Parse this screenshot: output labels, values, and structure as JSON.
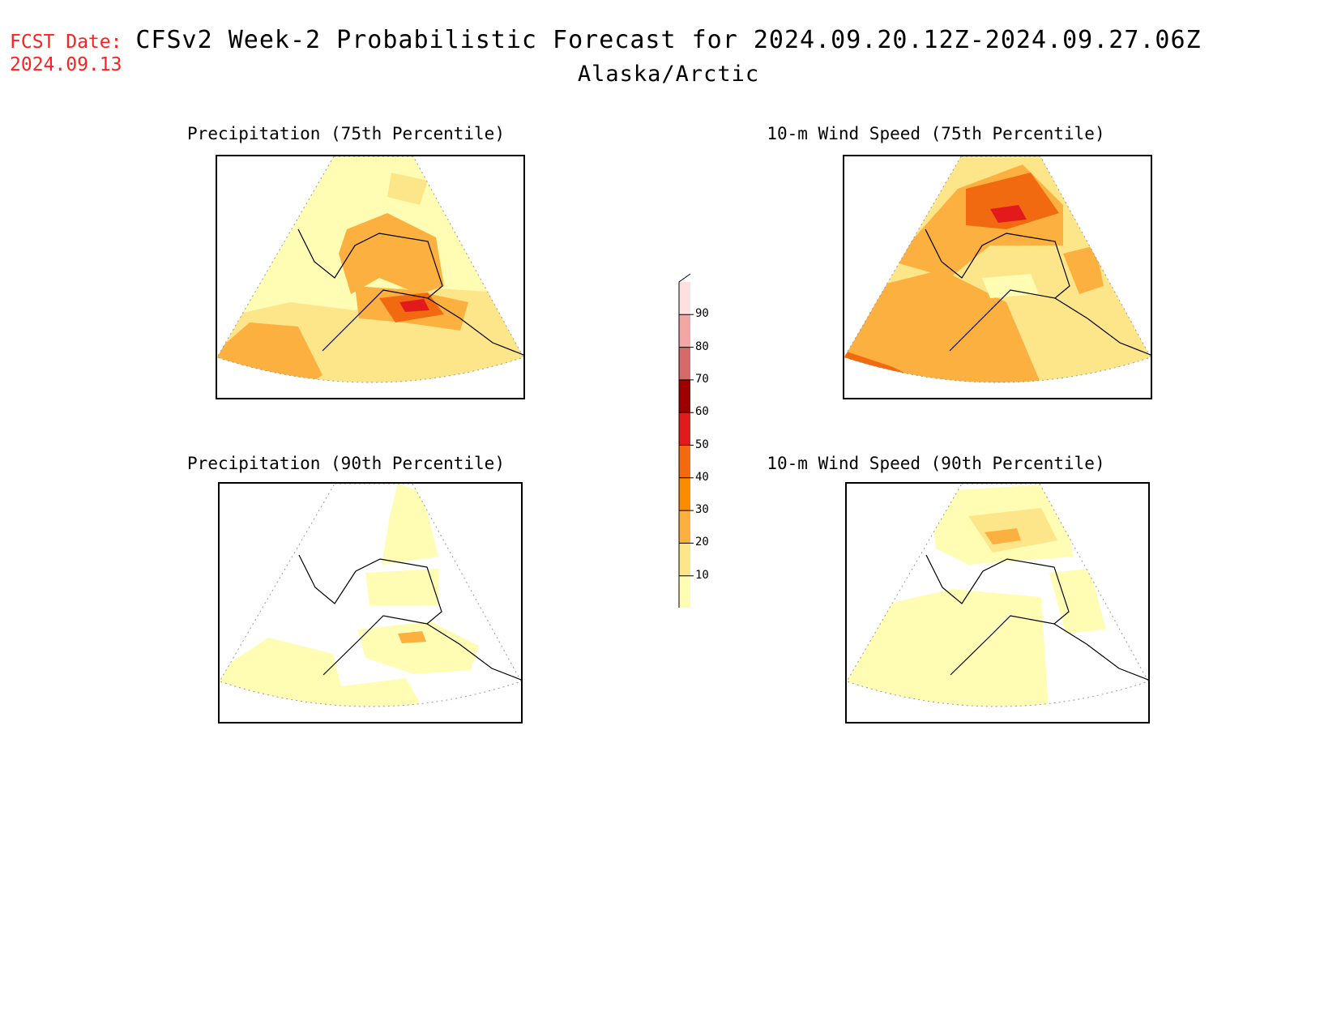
{
  "fcst_date_label": "FCST Date:",
  "fcst_date": "2024.09.13",
  "title": "CFSv2 Week-2 Probabilistic Forecast for 2024.09.20.12Z-2024.09.27.06Z",
  "subtitle": "Alaska/Arctic",
  "panels": [
    {
      "title": "Precipitation (75th Percentile)"
    },
    {
      "title": "10-m Wind Speed (75th Percentile)"
    },
    {
      "title": "Precipitation (90th Percentile)"
    },
    {
      "title": "10-m Wind Speed (90th Percentile)"
    }
  ],
  "colorbar": {
    "levels": [
      "10",
      "20",
      "30",
      "40",
      "50",
      "60",
      "70",
      "80",
      "90"
    ],
    "colors": [
      "#fffcb4",
      "#fde68a",
      "#fbb040",
      "#fb8c00",
      "#f26a10",
      "#e31a1c",
      "#9e0000",
      "#d66a6a",
      "#f2a6a6",
      "#ffe0e0"
    ]
  }
}
